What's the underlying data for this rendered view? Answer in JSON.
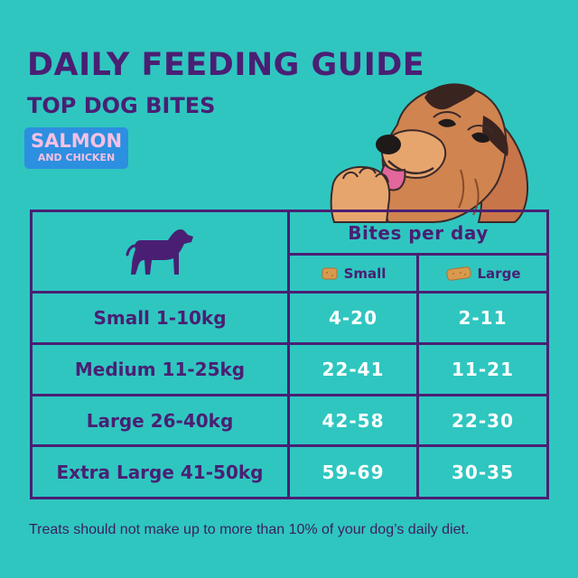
{
  "header": {
    "title": "DAILY FEEDING GUIDE",
    "subtitle": "TOP DOG BITES",
    "badge_line1": "SALMON",
    "badge_line2": "AND CHICKEN"
  },
  "table": {
    "header_label": "Bites per day",
    "columns": [
      {
        "label": "Small",
        "icon": "small-bite-icon"
      },
      {
        "label": "Large",
        "icon": "large-bite-icon"
      }
    ],
    "rows": [
      {
        "label": "Small 1-10kg",
        "small": "4-20",
        "large": "2-11"
      },
      {
        "label": "Medium 11-25kg",
        "small": "22-41",
        "large": "11-21"
      },
      {
        "label": "Large 26-40kg",
        "small": "42-58",
        "large": "22-30"
      },
      {
        "label": "Extra Large 41-50kg",
        "small": "59-69",
        "large": "30-35"
      }
    ]
  },
  "footnote": "Treats should not make up to more than 10% of your dog’s daily diet.",
  "colors": {
    "background": "#2fc6c0",
    "primary_purple": "#4a1f73",
    "badge_blue": "#2d8fe0",
    "badge_pink": "#f6c0e4",
    "value_white": "#ffffff",
    "treat_orange": "#d99a4e"
  }
}
